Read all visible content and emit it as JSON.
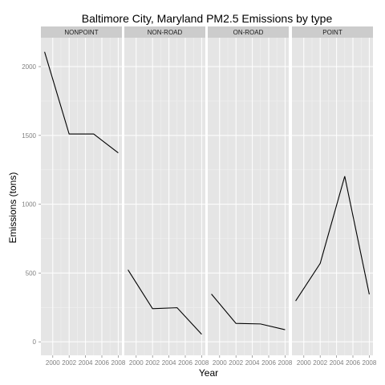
{
  "colors": {
    "panel_background": "#e5e5e5",
    "strip_background": "#cccccc",
    "grid_major": "#ffffff",
    "grid_minor": "#f2f2f2",
    "line": "#000000"
  },
  "chart_data": {
    "type": "line",
    "title": "Baltimore City, Maryland PM2.5 Emissions by type",
    "xlabel": "Year",
    "ylabel": "Emissions (tons)",
    "x": [
      1999,
      2002,
      2005,
      2008
    ],
    "xticks": [
      2000,
      2002,
      2004,
      2006,
      2008
    ],
    "xlim": [
      1998.55,
      2008.45
    ],
    "yticks": [
      0,
      500,
      1000,
      1500,
      2000
    ],
    "ylim": [
      -98,
      2210
    ],
    "grid": true,
    "legend": "none",
    "series": [
      {
        "name": "NONPOINT",
        "values": [
          2107,
          1510,
          1510,
          1373
        ]
      },
      {
        "name": "NON-ROAD",
        "values": [
          523,
          241,
          248,
          55
        ]
      },
      {
        "name": "ON-ROAD",
        "values": [
          347,
          134,
          130,
          88
        ]
      },
      {
        "name": "POINT",
        "values": [
          297,
          570,
          1203,
          345
        ]
      }
    ]
  }
}
